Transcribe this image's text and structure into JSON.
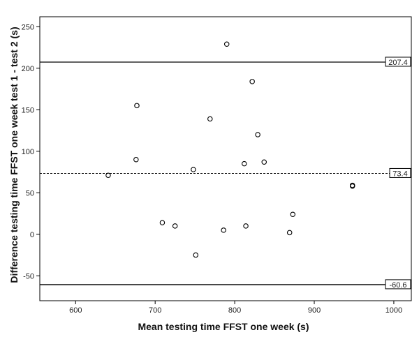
{
  "chart_data": {
    "type": "scatter",
    "title": "",
    "xlabel": "Mean testing time FFST one week (s)",
    "ylabel": "Difference testing time FFST one week test 1 - test 2 (s)",
    "xlim": [
      555,
      1022
    ],
    "ylim": [
      -80,
      262
    ],
    "x_ticks": [
      600,
      700,
      800,
      900,
      1000
    ],
    "y_ticks": [
      -50,
      0,
      50,
      100,
      150,
      200,
      250
    ],
    "points": [
      {
        "x": 641,
        "y": 71
      },
      {
        "x": 676,
        "y": 90
      },
      {
        "x": 677,
        "y": 155
      },
      {
        "x": 709,
        "y": 14
      },
      {
        "x": 725,
        "y": 10
      },
      {
        "x": 748,
        "y": 78
      },
      {
        "x": 751,
        "y": -25
      },
      {
        "x": 769,
        "y": 139
      },
      {
        "x": 786,
        "y": 5
      },
      {
        "x": 790,
        "y": 229
      },
      {
        "x": 812,
        "y": 85
      },
      {
        "x": 814,
        "y": 10
      },
      {
        "x": 822,
        "y": 184
      },
      {
        "x": 829,
        "y": 120
      },
      {
        "x": 837,
        "y": 87
      },
      {
        "x": 869,
        "y": 2
      },
      {
        "x": 873,
        "y": 24
      },
      {
        "x": 948,
        "y": 59
      },
      {
        "x": 948,
        "y": 58
      }
    ],
    "reference_lines": [
      {
        "value": 207.4,
        "label": "207.4",
        "style": "solid"
      },
      {
        "value": 73.4,
        "label": "73.4",
        "style": "dashed"
      },
      {
        "value": -60.6,
        "label": "-60.6",
        "style": "solid"
      }
    ],
    "grid": false,
    "marker": "open-circle"
  }
}
